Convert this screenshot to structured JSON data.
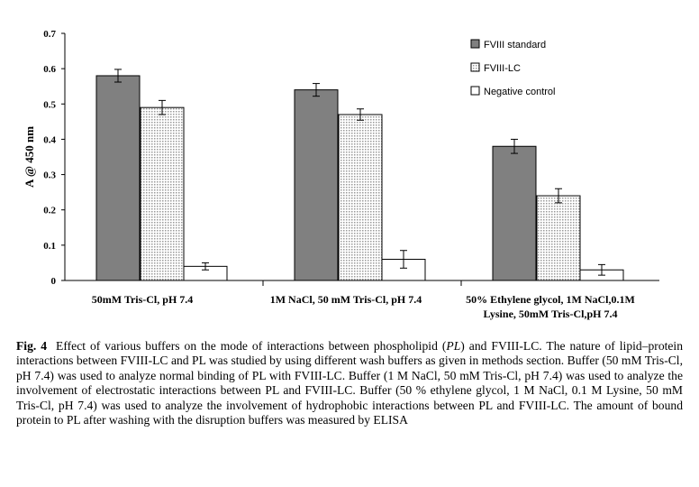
{
  "chart_data": {
    "type": "bar",
    "ylabel": "A @ 450 nm",
    "ylim": [
      0,
      0.7
    ],
    "yticks": [
      "0",
      "0.1",
      "0.2",
      "0.3",
      "0.4",
      "0.5",
      "0.6",
      "0.7"
    ],
    "categories": [
      [
        "50mM Tris-Cl, pH 7.4"
      ],
      [
        "1M NaCl, 50 mM Tris-Cl, pH 7.4"
      ],
      [
        "50% Ethylene glycol, 1M NaCl,0.1M",
        "Lysine, 50mM Tris-Cl,pH 7.4"
      ]
    ],
    "series": [
      {
        "name": "FVIII standard",
        "values": [
          0.58,
          0.54,
          0.38
        ],
        "errors": [
          0.018,
          0.018,
          0.02
        ],
        "fill": "#808080"
      },
      {
        "name": "FVIII-LC",
        "values": [
          0.49,
          0.47,
          0.24
        ],
        "errors": [
          0.02,
          0.016,
          0.02
        ],
        "fill": "pattern"
      },
      {
        "name": "Negative control",
        "values": [
          0.04,
          0.06,
          0.03
        ],
        "errors": [
          0.01,
          0.025,
          0.015
        ],
        "fill": "#ffffff"
      }
    ],
    "legend_position": "top-right",
    "grid": false
  },
  "caption": {
    "label": "Fig. 4",
    "parts": [
      "Effect of various buffers on the mode of interactions between phospholipid (",
      "PL",
      ") and FVIII-LC. The nature of lipid–protein interactions between FVIII-LC and PL was studied by using different wash buffers as given in methods section. Buffer (50 mM Tris-Cl, pH 7.4) was used to analyze normal binding of PL with FVIII-LC. Buffer (1 M NaCl, 50 mM Tris-Cl, pH 7.4) was used to analyze the involvement of electrostatic interactions between PL and FVIII-LC. Buffer (50 % ethylene glycol, 1 M NaCl, 0.1 M Lysine, 50 mM Tris-Cl, pH 7.4) was used to analyze the involvement of hydrophobic interactions between PL and FVIII-LC. The amount of bound protein to PL after washing with the disruption buffers was measured by ELISA"
    ]
  }
}
